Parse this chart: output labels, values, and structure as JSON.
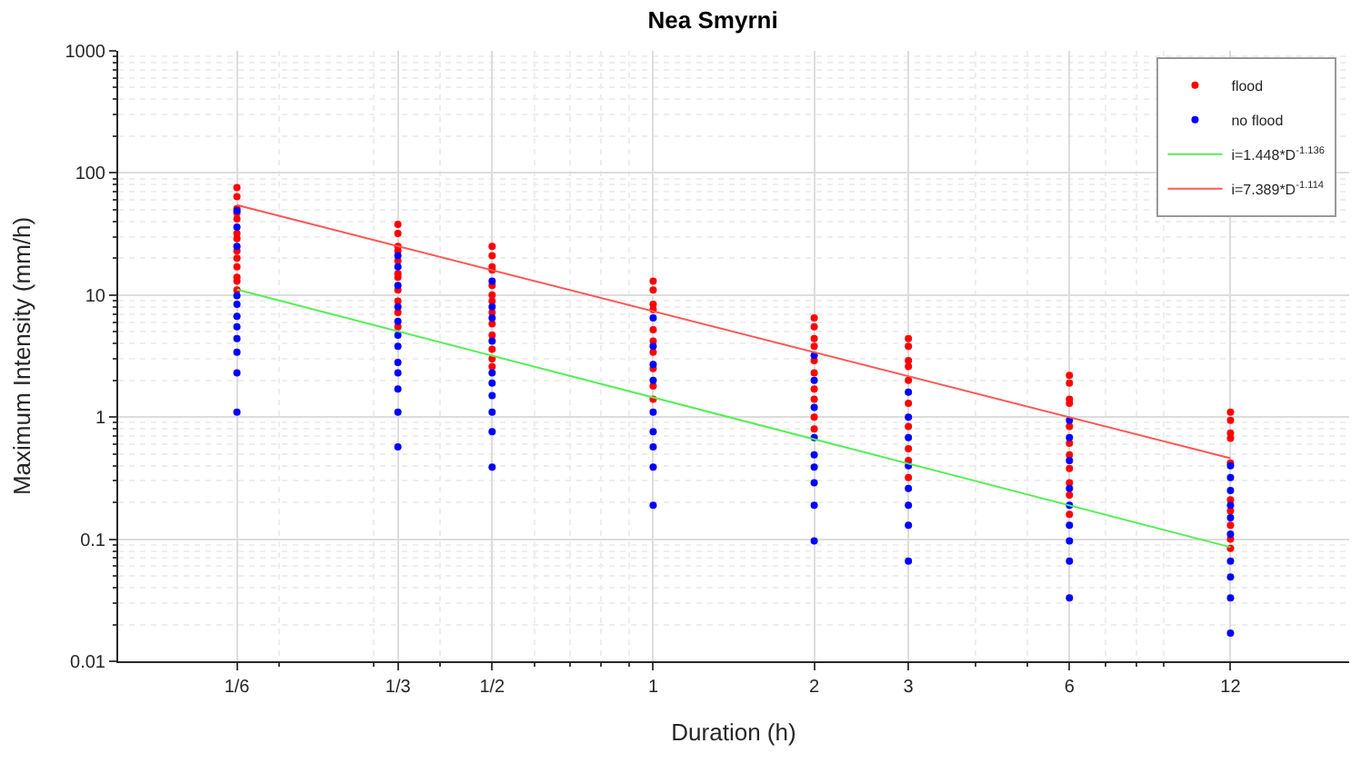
{
  "chart_data": {
    "type": "scatter",
    "title": "Nea Smyrni",
    "xlabel": "Duration (h)",
    "ylabel": "Maximum Intensity (mm/h)",
    "log": "xy",
    "grid": true,
    "legend": "top right",
    "xlim": [
      0.1,
      20
    ],
    "ylim": [
      0.01,
      1000
    ],
    "xticks": [
      {
        "value": 0.1667,
        "label": "1/6"
      },
      {
        "value": 0.3333,
        "label": "1/3"
      },
      {
        "value": 0.5,
        "label": "1/2"
      },
      1,
      2,
      3,
      6,
      12
    ],
    "yticks": [
      0.01,
      0.1,
      1,
      10,
      100,
      1000
    ],
    "series": [
      {
        "name": "flood",
        "color": "#ff0000",
        "marker": "circle",
        "x": [
          0.1667,
          0.1667,
          0.1667,
          0.1667,
          0.1667,
          0.1667,
          0.1667,
          0.1667,
          0.1667,
          0.1667,
          0.1667,
          0.1667,
          0.1667,
          0.3333,
          0.3333,
          0.3333,
          0.3333,
          0.3333,
          0.3333,
          0.3333,
          0.3333,
          0.3333,
          0.3333,
          0.3333,
          0.5,
          0.5,
          0.5,
          0.5,
          0.5,
          0.5,
          0.5,
          0.5,
          0.5,
          0.5,
          0.5,
          0.5,
          0.5,
          1,
          1,
          1,
          1,
          1,
          1,
          1,
          1,
          1,
          1,
          2,
          2,
          2,
          2,
          2,
          2,
          2,
          2,
          2,
          2,
          3,
          3,
          3,
          3,
          3,
          3,
          3,
          3,
          3,
          3,
          6,
          6,
          6,
          6,
          6,
          6,
          6,
          6,
          6,
          6,
          6,
          12,
          12,
          12,
          12,
          12,
          12,
          12,
          12,
          12,
          12
        ],
        "values": [
          76,
          64,
          51,
          47,
          42,
          32,
          29,
          23,
          20,
          17,
          14,
          13,
          11,
          38,
          32,
          25,
          23,
          19,
          15,
          14,
          11,
          8.9,
          7.2,
          5.5,
          25,
          21,
          17,
          16,
          12,
          10,
          8.9,
          7.2,
          5.8,
          4.7,
          3.6,
          3.0,
          2.6,
          13,
          11,
          8.4,
          7.6,
          5.2,
          4.2,
          3.4,
          2.5,
          1.8,
          1.4,
          6.5,
          5.5,
          4.4,
          3.8,
          2.9,
          2.3,
          1.7,
          1.4,
          1.0,
          0.8,
          4.4,
          3.8,
          2.9,
          2.6,
          2.0,
          1.3,
          0.84,
          0.55,
          0.44,
          0.32,
          2.2,
          1.9,
          1.4,
          1.3,
          0.84,
          0.61,
          0.49,
          0.38,
          0.29,
          0.23,
          0.16,
          1.1,
          0.94,
          0.74,
          0.67,
          0.42,
          0.21,
          0.17,
          0.13,
          0.1,
          0.084
        ]
      },
      {
        "name": "no flood",
        "color": "#0000ff",
        "marker": "circle",
        "x": [
          0.1667,
          0.1667,
          0.1667,
          0.1667,
          0.1667,
          0.1667,
          0.1667,
          0.1667,
          0.1667,
          0.1667,
          0.1667,
          0.3333,
          0.3333,
          0.3333,
          0.3333,
          0.3333,
          0.3333,
          0.3333,
          0.3333,
          0.3333,
          0.3333,
          0.3333,
          0.3333,
          0.5,
          0.5,
          0.5,
          0.5,
          0.5,
          0.5,
          0.5,
          0.5,
          0.5,
          0.5,
          1,
          1,
          1,
          1,
          1,
          1,
          1,
          1,
          1,
          2,
          2,
          2,
          2,
          2,
          2,
          2,
          2,
          2,
          3,
          3,
          3,
          3,
          3,
          3,
          3,
          3,
          6,
          6,
          6,
          6,
          6,
          6,
          6,
          6,
          6,
          12,
          12,
          12,
          12,
          12,
          12,
          12,
          12,
          12,
          12
        ],
        "values": [
          49,
          36,
          25,
          9.9,
          8.4,
          6.7,
          5.5,
          4.4,
          3.4,
          2.3,
          1.1,
          21,
          17,
          12,
          8,
          6.1,
          4.7,
          3.8,
          2.8,
          2.3,
          1.7,
          1.1,
          0.57,
          13,
          8,
          6.5,
          4.2,
          2.3,
          1.9,
          1.5,
          1.1,
          0.76,
          0.39,
          6.5,
          3.8,
          2.7,
          2.0,
          1.1,
          0.76,
          0.57,
          0.39,
          0.19,
          3.2,
          2.0,
          1.2,
          0.68,
          0.49,
          0.39,
          0.29,
          0.19,
          0.097,
          1.6,
          1.0,
          0.68,
          0.4,
          0.26,
          0.19,
          0.13,
          0.066,
          0.94,
          0.68,
          0.44,
          0.26,
          0.19,
          0.13,
          0.097,
          0.066,
          0.033,
          0.4,
          0.32,
          0.25,
          0.19,
          0.15,
          0.11,
          0.066,
          0.049,
          0.033,
          0.017
        ]
      },
      {
        "name": "i=1.448*D$^{-1.136}$",
        "type": "line",
        "marker": "none",
        "color": "#55ee55",
        "x": [
          0.1667,
          12
        ],
        "values": [
          11.1,
          0.086
        ]
      },
      {
        "name": "i=7.389*D$^{-1.114}$",
        "type": "line",
        "marker": "none",
        "color": "#ff5555",
        "x": [
          0.1667,
          12
        ],
        "values": [
          54.5,
          0.46
        ]
      }
    ]
  }
}
